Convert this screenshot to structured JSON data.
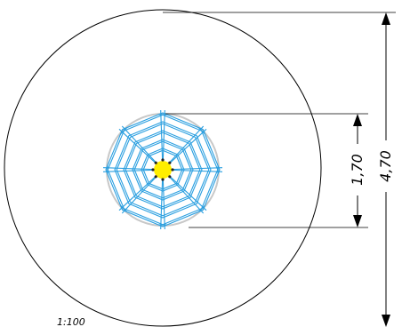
{
  "drawing": {
    "scale_label": "1:100",
    "dimensions": {
      "outer": {
        "label": "4,70",
        "value": 4.7
      },
      "inner": {
        "label": "1,70",
        "value": 1.7
      }
    },
    "colors": {
      "line": "#000000",
      "web": "#2a9fe0",
      "web_ring": "#c8c8c8",
      "center_fill": "#ffee00",
      "center_dots": "#222222"
    },
    "web": {
      "spokes": 8,
      "rings": 5
    }
  }
}
